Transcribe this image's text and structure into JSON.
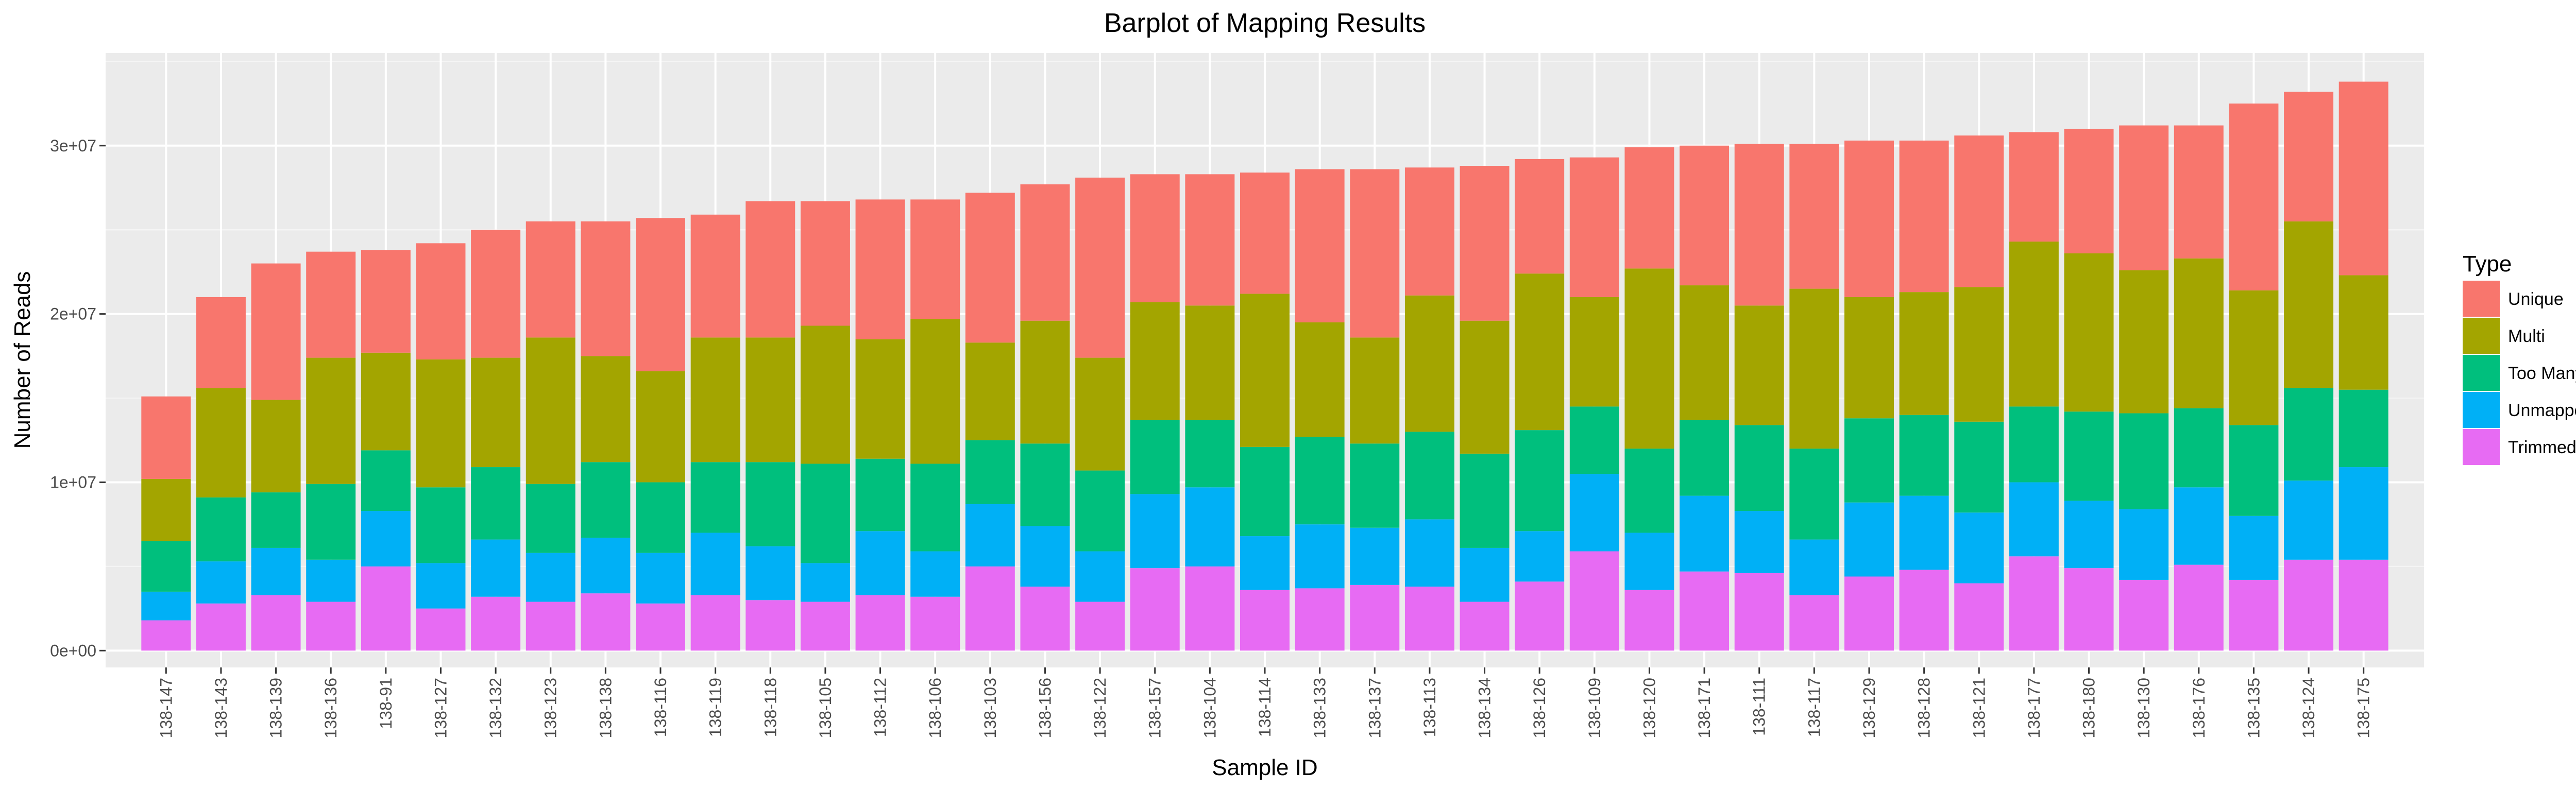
{
  "chart_data": {
    "type": "bar",
    "stacked": true,
    "title": "Barplot of Mapping Results",
    "xlabel": "Sample ID",
    "ylabel": "Number of Reads",
    "ylim": [
      -1000000,
      35500000
    ],
    "y_ticks": [
      0,
      10000000,
      20000000,
      30000000
    ],
    "y_tick_labels": [
      "0e+00",
      "1e+07",
      "2e+07",
      "3e+07"
    ],
    "grid": true,
    "legend_title": "Type",
    "legend_position": "right",
    "categories": [
      "138-147",
      "138-143",
      "138-139",
      "138-136",
      "138-91",
      "138-127",
      "138-132",
      "138-123",
      "138-138",
      "138-116",
      "138-119",
      "138-118",
      "138-105",
      "138-112",
      "138-106",
      "138-103",
      "138-156",
      "138-122",
      "138-157",
      "138-104",
      "138-114",
      "138-133",
      "138-137",
      "138-113",
      "138-134",
      "138-126",
      "138-109",
      "138-120",
      "138-171",
      "138-111",
      "138-117",
      "138-129",
      "138-128",
      "138-121",
      "138-177",
      "138-180",
      "138-130",
      "138-176",
      "138-135",
      "138-124",
      "138-175"
    ],
    "series": [
      {
        "name": "Trimmed Off",
        "color": "#E76BF3",
        "values": [
          1800000,
          2800000,
          3300000,
          2900000,
          5000000,
          2500000,
          3200000,
          2900000,
          3400000,
          2800000,
          3300000,
          3000000,
          2900000,
          3300000,
          3200000,
          5000000,
          3800000,
          2900000,
          4900000,
          5000000,
          3600000,
          3700000,
          3900000,
          3800000,
          2900000,
          4100000,
          5900000,
          3600000,
          4700000,
          4600000,
          3300000,
          4400000,
          4800000,
          4000000,
          5600000,
          4900000,
          4200000,
          5100000,
          4200000,
          5400000,
          5400000
        ]
      },
      {
        "name": "Unmapped",
        "color": "#00B0F6",
        "values": [
          1700000,
          2500000,
          2800000,
          2500000,
          3300000,
          2700000,
          3400000,
          2900000,
          3300000,
          3000000,
          3700000,
          3200000,
          2300000,
          3800000,
          2700000,
          3700000,
          3600000,
          3000000,
          4400000,
          4700000,
          3200000,
          3800000,
          3400000,
          4000000,
          3200000,
          3000000,
          4600000,
          3400000,
          4500000,
          3700000,
          3300000,
          4400000,
          4400000,
          4200000,
          4400000,
          4000000,
          4200000,
          4600000,
          3800000,
          4700000,
          5500000
        ]
      },
      {
        "name": "Too Many",
        "color": "#00BF7D",
        "values": [
          3000000,
          3800000,
          3300000,
          4500000,
          3600000,
          4500000,
          4300000,
          4100000,
          4500000,
          4200000,
          4200000,
          5000000,
          5900000,
          4300000,
          5200000,
          3800000,
          4900000,
          4800000,
          4400000,
          4000000,
          5300000,
          5200000,
          5000000,
          5200000,
          5600000,
          6000000,
          4000000,
          5000000,
          4500000,
          5100000,
          5400000,
          5000000,
          4800000,
          5400000,
          4500000,
          5300000,
          5700000,
          4700000,
          5400000,
          5500000,
          4600000
        ]
      },
      {
        "name": "Multi",
        "color": "#A3A500",
        "values": [
          3700000,
          6500000,
          5500000,
          7500000,
          5800000,
          7600000,
          6500000,
          8700000,
          6300000,
          6600000,
          7400000,
          7400000,
          8200000,
          7100000,
          8600000,
          5800000,
          7300000,
          6700000,
          7000000,
          6800000,
          9100000,
          6800000,
          6300000,
          8100000,
          7900000,
          9300000,
          6500000,
          10700000,
          8000000,
          7100000,
          9500000,
          7200000,
          7300000,
          8000000,
          9800000,
          9400000,
          8500000,
          8900000,
          8000000,
          9900000,
          6800000
        ]
      },
      {
        "name": "Unique",
        "color": "#F8766D",
        "values": [
          4900000,
          5400000,
          8100000,
          6300000,
          6100000,
          6900000,
          7600000,
          6900000,
          8000000,
          9100000,
          7300000,
          8100000,
          7400000,
          8300000,
          7100000,
          8900000,
          8100000,
          10700000,
          7600000,
          7800000,
          7200000,
          9100000,
          10000000,
          7600000,
          9200000,
          6800000,
          8300000,
          7200000,
          8300000,
          9600000,
          8600000,
          9300000,
          9000000,
          9000000,
          6500000,
          7400000,
          8600000,
          7900000,
          11100000,
          7700000,
          11500000
        ]
      }
    ]
  }
}
